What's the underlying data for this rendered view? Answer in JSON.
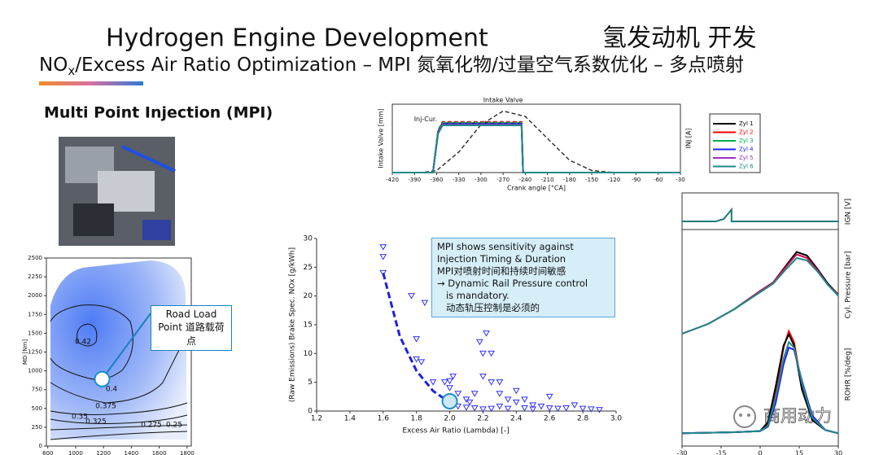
{
  "header": {
    "title": "Hydrogen Engine  Development",
    "title_cn": "氢发动机  开发",
    "subtitle_main": "NO",
    "subtitle_sub": "x",
    "subtitle_rest": "/Excess Air Ratio Optimization – MPI 氮氧化物/过量空气系数优化 – 多点喷射",
    "section": "Multi Point Injection (MPI)"
  },
  "watermark": "商用动力",
  "chart_data": [
    {
      "type": "line",
      "xlabel": "Crank angle [°CA]",
      "ylabel": "Intake Valve [mm]",
      "y2label": "INJ [A]",
      "xlim": [
        -420,
        -30
      ],
      "xticks": [
        -420,
        -390,
        -360,
        -330,
        -300,
        -270,
        -240,
        -210,
        -180,
        -150,
        -120,
        -90,
        -60,
        -30
      ],
      "ylim": [
        0,
        10
      ],
      "annotations": [
        "Intake Valve",
        "Inj-Cur."
      ],
      "intake_valve": {
        "x": [
          -420,
          -380,
          -360,
          -330,
          -300,
          -270,
          -240,
          -210,
          -180,
          -150,
          -120,
          -30
        ],
        "values": [
          0,
          0,
          0.3,
          3,
          7,
          9,
          8.2,
          5,
          1.8,
          0.3,
          0,
          0
        ],
        "color": "#333333"
      },
      "x": [
        -420,
        -365,
        -358,
        -352,
        -245,
        -243,
        -30
      ],
      "series": [
        {
          "name": "Zyl 1",
          "color": "#000000",
          "style": "solid",
          "values": [
            0,
            0,
            6,
            7.2,
            7.2,
            0,
            0
          ]
        },
        {
          "name": "Zyl 2",
          "color": "#ff0000",
          "style": "dashed",
          "values": [
            0,
            0,
            6.2,
            7.4,
            7.4,
            0,
            0
          ]
        },
        {
          "name": "Zyl 3",
          "color": "#00b050",
          "style": "dashed",
          "values": [
            0,
            0,
            6.1,
            7.3,
            7.3,
            0,
            0
          ]
        },
        {
          "name": "Zyl 4",
          "color": "#2020ff",
          "style": "solid",
          "values": [
            0,
            0,
            5.9,
            7.1,
            7.1,
            0,
            0
          ]
        },
        {
          "name": "Zyl 5",
          "color": "#9b30c0",
          "style": "solid",
          "values": [
            0,
            0,
            5.8,
            7,
            7,
            0,
            0
          ]
        },
        {
          "name": "Zyl 6",
          "color": "#1f8a8a",
          "style": "solid",
          "values": [
            0,
            0,
            5.7,
            6.9,
            6.9,
            0,
            0
          ]
        }
      ]
    },
    {
      "type": "contour",
      "ylabel": "MD [Nm]",
      "xlim": [
        790,
        1830
      ],
      "xticks": [
        800,
        1000,
        1200,
        1400,
        1600,
        1800
      ],
      "ylim": [
        0,
        2500
      ],
      "yticks": [
        0,
        250,
        500,
        750,
        1000,
        1250,
        1500,
        1750,
        2000,
        2250,
        2500
      ],
      "levels": [
        0.42,
        0.4,
        0.375,
        0.35,
        0.325,
        0.275,
        0.25
      ],
      "road_load_point": {
        "x": 1190,
        "y": 890
      },
      "callout": "Road Load Point 道路载荷点"
    },
    {
      "type": "scatter",
      "xlabel": "Excess Air Ratio (Lambda) [-]",
      "ylabel": "(Raw Emissions) Brake Spec. NOx [g/kWh]",
      "xlim": [
        1.2,
        3.0
      ],
      "xticks": [
        1.2,
        1.4,
        1.6,
        1.8,
        {
          "value": 2,
          "label": "2.0"
        },
        2.2,
        2.4,
        2.6,
        2.8,
        {
          "value": 3,
          "label": "3.0"
        }
      ],
      "ylim": [
        0,
        30
      ],
      "yticks": [
        0,
        5,
        10,
        15,
        20,
        25,
        30
      ],
      "color": "#3030ff",
      "x": [
        1.6,
        1.6,
        1.6,
        1.77,
        1.8,
        1.8,
        1.83,
        1.85,
        1.9,
        1.97,
        2.0,
        2.0,
        2.02,
        2.05,
        2.1,
        2.12,
        2.15,
        2.18,
        2.2,
        2.22,
        2.25,
        2.2,
        2.25,
        2.3,
        2.3,
        2.35,
        2.4,
        2.4,
        2.45,
        2.5,
        2.55,
        2.6,
        2.6,
        2.7,
        2.75,
        2.8,
        2.85,
        2.9,
        2.15,
        2.2,
        2.05,
        2.1,
        2.25,
        2.3,
        2.35,
        2.45,
        2.5,
        2.65
      ],
      "y": [
        28.5,
        26.8,
        24,
        20,
        12.5,
        9,
        8.5,
        18.8,
        5,
        5,
        5.2,
        4,
        6,
        3,
        2,
        1.5,
        3,
        12,
        10,
        13.5,
        10,
        6,
        5,
        5,
        3,
        2,
        3.5,
        1.5,
        2,
        1,
        0.8,
        2.5,
        0.5,
        0.5,
        1,
        0.4,
        0.3,
        0.2,
        0.5,
        0.3,
        0.8,
        0.6,
        0.4,
        0.8,
        0.4,
        0.5,
        0.3,
        0.4
      ],
      "trend": {
        "x": [
          1.6,
          1.7,
          1.8,
          1.9,
          2.0
        ],
        "values": [
          24,
          13,
          7,
          3.5,
          1.5
        ]
      },
      "highlight": {
        "x": 2.0,
        "y": 1.7
      },
      "note": [
        "MPI shows sensitivity against",
        "Injection Timing & Duration",
        "MPI对喷射时间和持续时间敏感",
        "→ Dynamic Rail Pressure control",
        "   is mandatory.",
        "   动态轨压控制是必须的"
      ]
    },
    {
      "type": "panels",
      "xlim": [
        -30,
        30
      ],
      "xticks": [
        -30,
        -15,
        0,
        15,
        30
      ],
      "panels": [
        {
          "ylabel": "IGN [V]",
          "ylim": [
            0,
            10
          ],
          "x": [
            -30,
            -17,
            -14,
            -11,
            -11,
            30
          ],
          "series": [
            {
              "color": "#1f7a7a",
              "values": [
                0,
                0,
                1,
                5,
                0,
                0
              ]
            }
          ]
        },
        {
          "ylabel": "Cyl. Pressure [bar]",
          "ylim": [
            0,
            100
          ],
          "x": [
            -30,
            -20,
            -10,
            0,
            5,
            10,
            14,
            18,
            22,
            26,
            30
          ],
          "series": [
            {
              "color": "#000000",
              "values": [
                20,
                28,
                40,
                55,
                62,
                76,
                87,
                84,
                73,
                61,
                52
              ]
            },
            {
              "color": "#d01050",
              "values": [
                20,
                28,
                40,
                55,
                62,
                75,
                85,
                82,
                72,
                60,
                52
              ]
            },
            {
              "color": "#1f8a8a",
              "values": [
                20,
                28,
                40,
                54,
                61,
                73,
                82,
                80,
                71,
                60,
                51
              ]
            }
          ]
        },
        {
          "ylabel": "ROHR [%/deg]",
          "ylim": [
            0,
            100
          ],
          "x": [
            -30,
            -10,
            0,
            3,
            6,
            9,
            11,
            13,
            16,
            20,
            25,
            30
          ],
          "series": [
            {
              "color": "#ff0000",
              "values": [
                2,
                3,
                4,
                10,
                40,
                80,
                95,
                85,
                45,
                15,
                5,
                2
              ]
            },
            {
              "color": "#000000",
              "values": [
                2,
                3,
                4,
                12,
                45,
                82,
                92,
                82,
                42,
                14,
                5,
                2
              ]
            },
            {
              "color": "#2020ff",
              "values": [
                2,
                3,
                4,
                8,
                30,
                65,
                80,
                78,
                50,
                18,
                5,
                2
              ]
            },
            {
              "color": "#1f8a8a",
              "values": [
                2,
                3,
                4,
                9,
                35,
                70,
                85,
                80,
                48,
                16,
                5,
                2
              ]
            }
          ]
        }
      ]
    }
  ]
}
